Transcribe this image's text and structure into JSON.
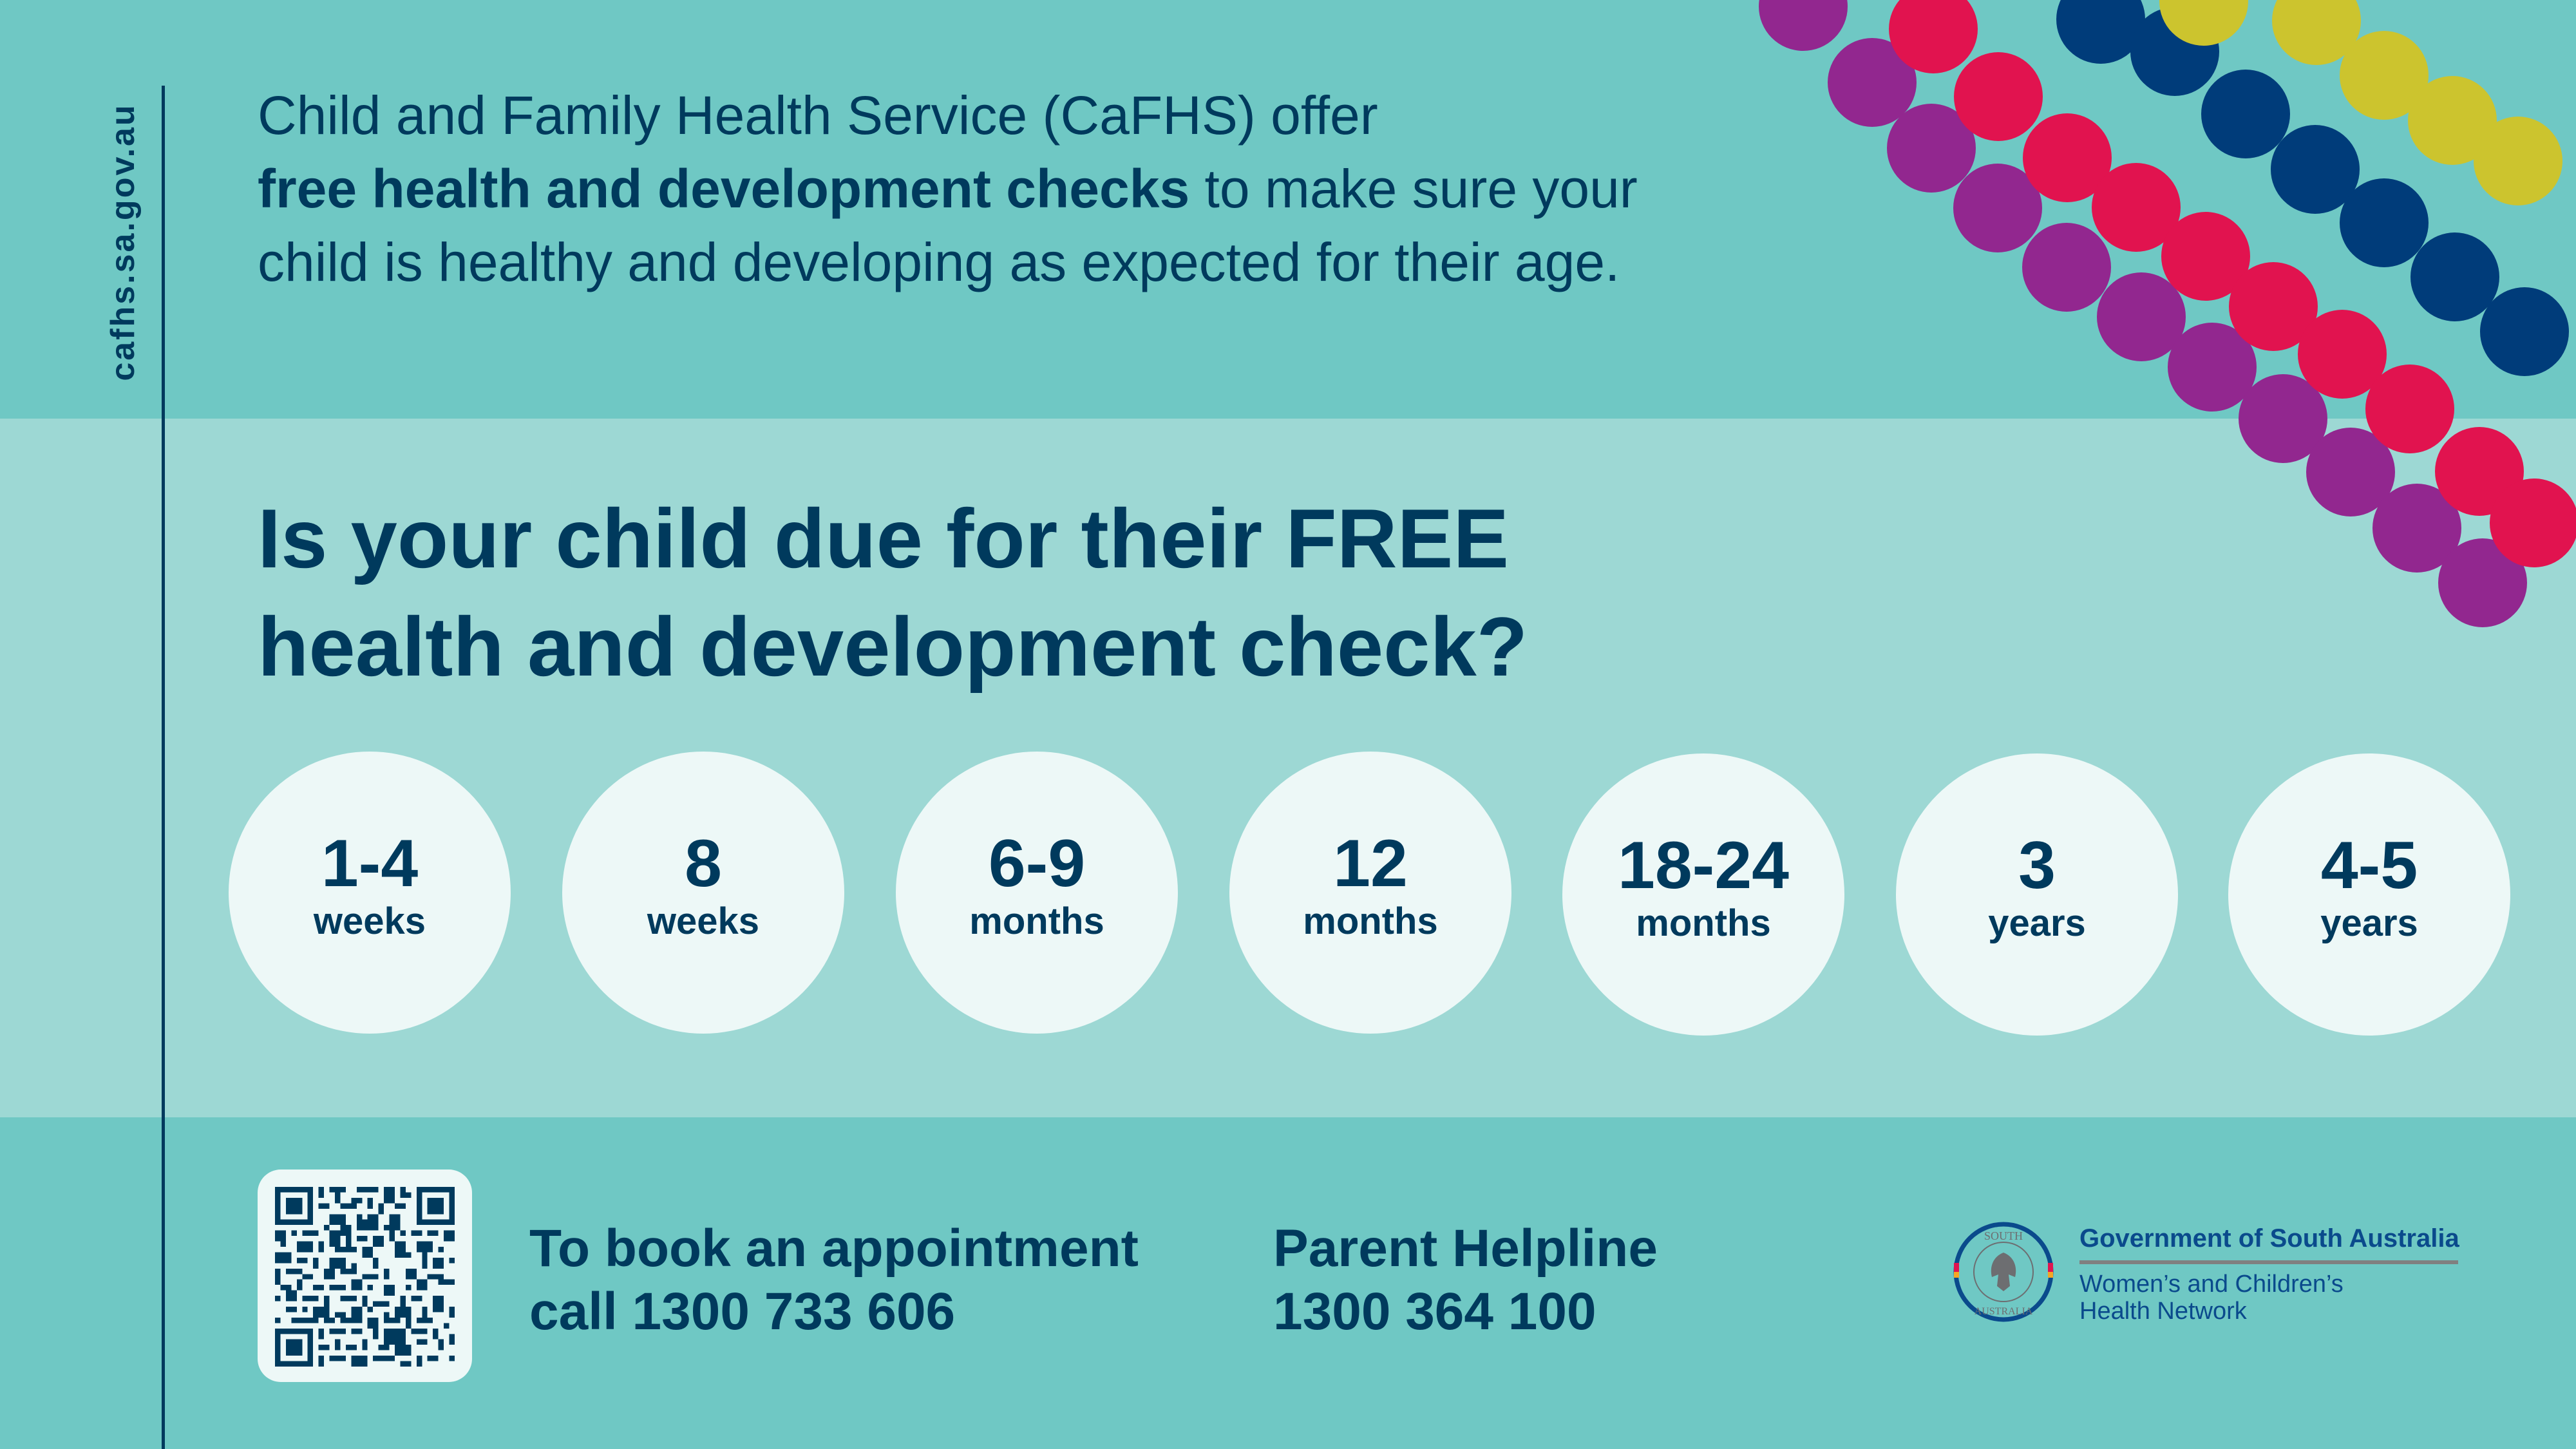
{
  "sidebar": {
    "url": "cafhs.sa.gov.au"
  },
  "intro": {
    "part1": "Child and Family Health Service (CaFHS) offer",
    "bold": "free health and development checks",
    "part2": " to make sure your child is healthy and developing as expected for their age."
  },
  "heading": {
    "line1": "Is your child due for their FREE",
    "line2": "health and development check?"
  },
  "checks": [
    {
      "num": "1-4",
      "unit": "weeks"
    },
    {
      "num": "8",
      "unit": "weeks"
    },
    {
      "num": "6-9",
      "unit": "months"
    },
    {
      "num": "12",
      "unit": "months"
    },
    {
      "num": "18-24",
      "unit": "months"
    },
    {
      "num": "3",
      "unit": "years"
    },
    {
      "num": "4-5",
      "unit": "years"
    }
  ],
  "booking": {
    "line1": "To book an appointment",
    "line2": "call 1300 733 606"
  },
  "helpline": {
    "line1": "Parent Helpline",
    "line2": "1300 364 100"
  },
  "logo": {
    "seal_top": "SOUTH",
    "seal_bottom": "AUSTRALIA",
    "government": "Government of South Australia",
    "network_line1": "Women’s and Children’s",
    "network_line2": "Health Network"
  },
  "colors": {
    "band_dark": "#6fc8c4",
    "band_light": "#9dd8d4",
    "navy": "#003a5d",
    "circle_fill": "#edf8f7",
    "dot_purple": "#92278f",
    "dot_pink": "#e1134f",
    "dot_blue": "#003c7a",
    "dot_yellow": "#ccc42e"
  },
  "icons": {
    "qr": "qr-code-icon",
    "seal": "south-australia-seal-icon"
  }
}
